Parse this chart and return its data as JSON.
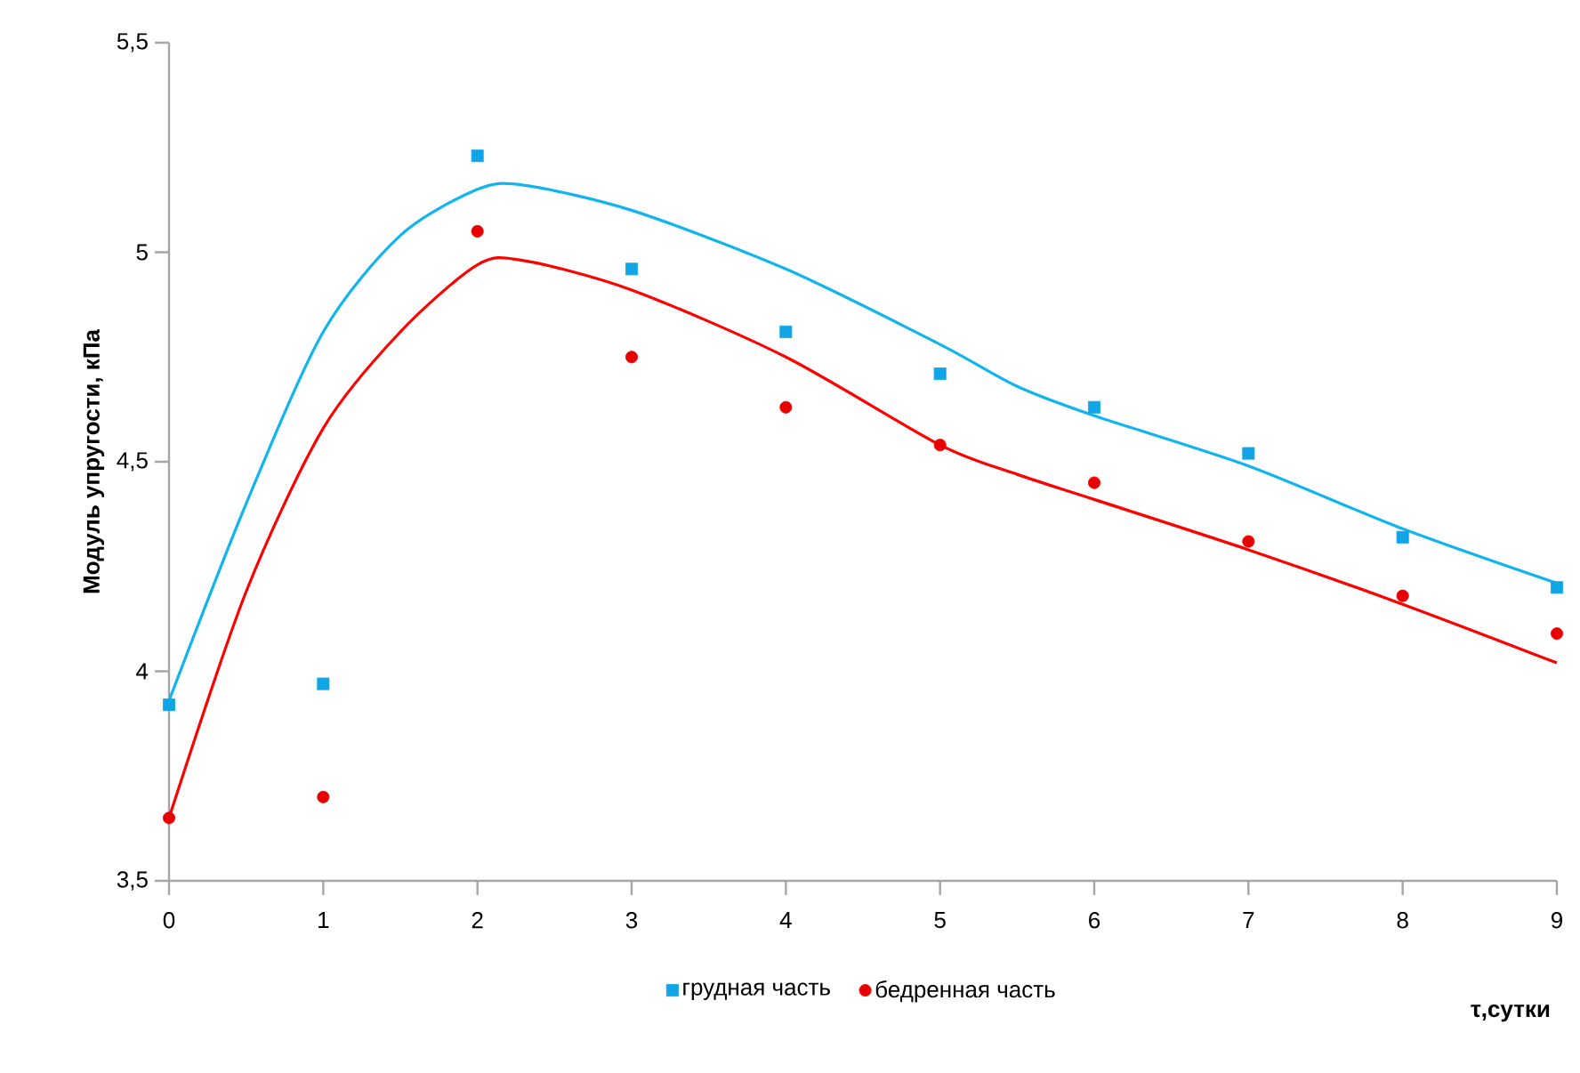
{
  "chart_data": {
    "type": "scatter",
    "xlabel": "τ,сутки",
    "ylabel": "Модуль упругости, кПа",
    "xlim": [
      0,
      9
    ],
    "xticks": [
      0,
      1,
      2,
      3,
      4,
      5,
      6,
      7,
      8,
      9
    ],
    "ylim": [
      3.5,
      5.5
    ],
    "yticks": [
      {
        "value": 3.5,
        "label": "3,5"
      },
      {
        "value": 4,
        "label": "4"
      },
      {
        "value": 4.5,
        "label": "4,5"
      },
      {
        "value": 5,
        "label": "5"
      },
      {
        "value": 5.5,
        "label": "5,5"
      }
    ],
    "grid": false,
    "legend": "bottom",
    "series": [
      {
        "name": "грудная часть",
        "marker": "square",
        "color": "#12a5e6",
        "x": [
          0,
          1,
          2,
          3,
          4,
          5,
          6,
          7,
          8,
          9
        ],
        "values": [
          3.92,
          3.97,
          5.23,
          4.96,
          4.81,
          4.71,
          4.63,
          4.52,
          4.32,
          4.2
        ]
      },
      {
        "name": "бедренная часть",
        "marker": "circle",
        "color": "#e80000",
        "x": [
          0,
          1,
          2,
          3,
          4,
          5,
          6,
          7,
          8,
          9
        ],
        "values": [
          3.65,
          3.7,
          5.05,
          4.75,
          4.63,
          4.54,
          4.45,
          4.31,
          4.18,
          4.09
        ]
      },
      {
        "type": "line",
        "marker": "none",
        "color": "#12b4ee",
        "x": [
          0,
          0.5,
          1,
          1.5,
          2,
          2.3,
          3,
          4,
          5,
          5.5,
          6,
          7,
          8,
          9
        ],
        "values": [
          3.93,
          4.4,
          4.81,
          5.04,
          5.15,
          5.16,
          5.1,
          4.96,
          4.78,
          4.68,
          4.61,
          4.49,
          4.34,
          4.21
        ]
      },
      {
        "type": "line",
        "marker": "none",
        "color": "#ff0000",
        "x": [
          0,
          0.5,
          1,
          1.5,
          2,
          2.3,
          3,
          4,
          5,
          5.5,
          6,
          7,
          8,
          9
        ],
        "values": [
          3.65,
          4.19,
          4.58,
          4.81,
          4.97,
          4.98,
          4.91,
          4.75,
          4.54,
          4.47,
          4.41,
          4.29,
          4.16,
          4.02
        ]
      }
    ]
  }
}
